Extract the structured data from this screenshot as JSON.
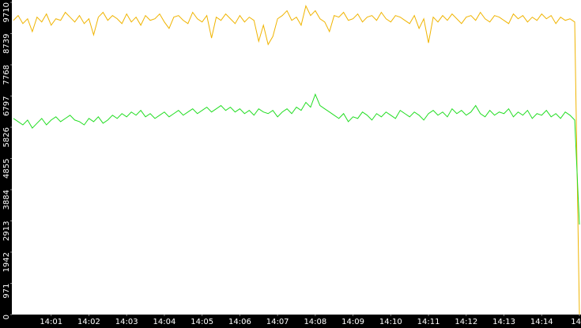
{
  "chart_data": {
    "type": "line",
    "series": [
      {
        "color": "#f0b400",
        "values": [
          9150,
          9300,
          9050,
          9200,
          8800,
          9250,
          9100,
          9350,
          9000,
          9200,
          9150,
          9400,
          9250,
          9100,
          9300,
          9050,
          9200,
          8700,
          9250,
          9400,
          9150,
          9300,
          9200,
          9050,
          9350,
          9100,
          9250,
          9000,
          9300,
          9150,
          9200,
          9350,
          9100,
          8900,
          9250,
          9300,
          9150,
          9050,
          9400,
          9200,
          9100,
          9300,
          8600,
          9250,
          9150,
          9350,
          9200,
          9050,
          9300,
          9100,
          9250,
          9150,
          8500,
          9000,
          8400,
          8650,
          9200,
          9300,
          9450,
          9150,
          9250,
          9000,
          9600,
          9300,
          9450,
          9200,
          9100,
          8800,
          9300,
          9250,
          9400,
          9150,
          9200,
          9350,
          9100,
          9250,
          9300,
          9150,
          9400,
          9200,
          9100,
          9300,
          9250,
          9150,
          9050,
          9300,
          8900,
          9200,
          8450,
          9250,
          9100,
          9300,
          9150,
          9350,
          9200,
          9050,
          9250,
          9300,
          9150,
          9400,
          9200,
          9100,
          9300,
          9250,
          9150,
          9050,
          9350,
          9200,
          9300,
          9100,
          9250,
          9150,
          9350,
          9200,
          9300,
          9050,
          9250,
          9150,
          9200,
          9100,
          0
        ]
      },
      {
        "color": "#22dd22",
        "values": [
          6100,
          6000,
          5900,
          6050,
          5800,
          5950,
          6100,
          5900,
          6050,
          6150,
          6000,
          6100,
          6200,
          6050,
          6000,
          5900,
          6100,
          6000,
          6150,
          5950,
          6050,
          6200,
          6100,
          6250,
          6150,
          6300,
          6200,
          6350,
          6150,
          6250,
          6100,
          6200,
          6300,
          6150,
          6250,
          6350,
          6200,
          6300,
          6400,
          6250,
          6350,
          6450,
          6300,
          6400,
          6500,
          6350,
          6450,
          6300,
          6400,
          6250,
          6350,
          6200,
          6400,
          6300,
          6250,
          6350,
          6150,
          6300,
          6400,
          6250,
          6450,
          6350,
          6600,
          6450,
          6850,
          6500,
          6400,
          6300,
          6200,
          6100,
          6250,
          6000,
          6150,
          6100,
          6300,
          6200,
          6050,
          6250,
          6150,
          6300,
          6200,
          6100,
          6350,
          6250,
          6150,
          6300,
          6200,
          6050,
          6250,
          6350,
          6200,
          6300,
          6150,
          6400,
          6250,
          6350,
          6200,
          6300,
          6500,
          6250,
          6150,
          6350,
          6200,
          6300,
          6250,
          6400,
          6150,
          6300,
          6200,
          6350,
          6100,
          6250,
          6200,
          6350,
          6150,
          6250,
          6100,
          6300,
          6200,
          6050,
          2800
        ]
      }
    ],
    "xlim": [
      0,
      120
    ],
    "xticks": [
      {
        "value": 8,
        "label": "14:01"
      },
      {
        "value": 16,
        "label": "14:02"
      },
      {
        "value": 24,
        "label": "14:03"
      },
      {
        "value": 32,
        "label": "14:04"
      },
      {
        "value": 40,
        "label": "14:05"
      },
      {
        "value": 48,
        "label": "14:06"
      },
      {
        "value": 56,
        "label": "14:07"
      },
      {
        "value": 64,
        "label": "14:08"
      },
      {
        "value": 72,
        "label": "14:09"
      },
      {
        "value": 80,
        "label": "14:10"
      },
      {
        "value": 88,
        "label": "14:11"
      },
      {
        "value": 96,
        "label": "14:12"
      },
      {
        "value": 104,
        "label": "14:13"
      },
      {
        "value": 112,
        "label": "14:14"
      },
      {
        "value": 120,
        "label": "14"
      }
    ],
    "ylim": [
      0,
      9710
    ],
    "yticks": [
      0,
      971,
      1942,
      2913,
      3884,
      4855,
      5826,
      6797,
      7768,
      8739,
      9710
    ],
    "grid": false
  }
}
